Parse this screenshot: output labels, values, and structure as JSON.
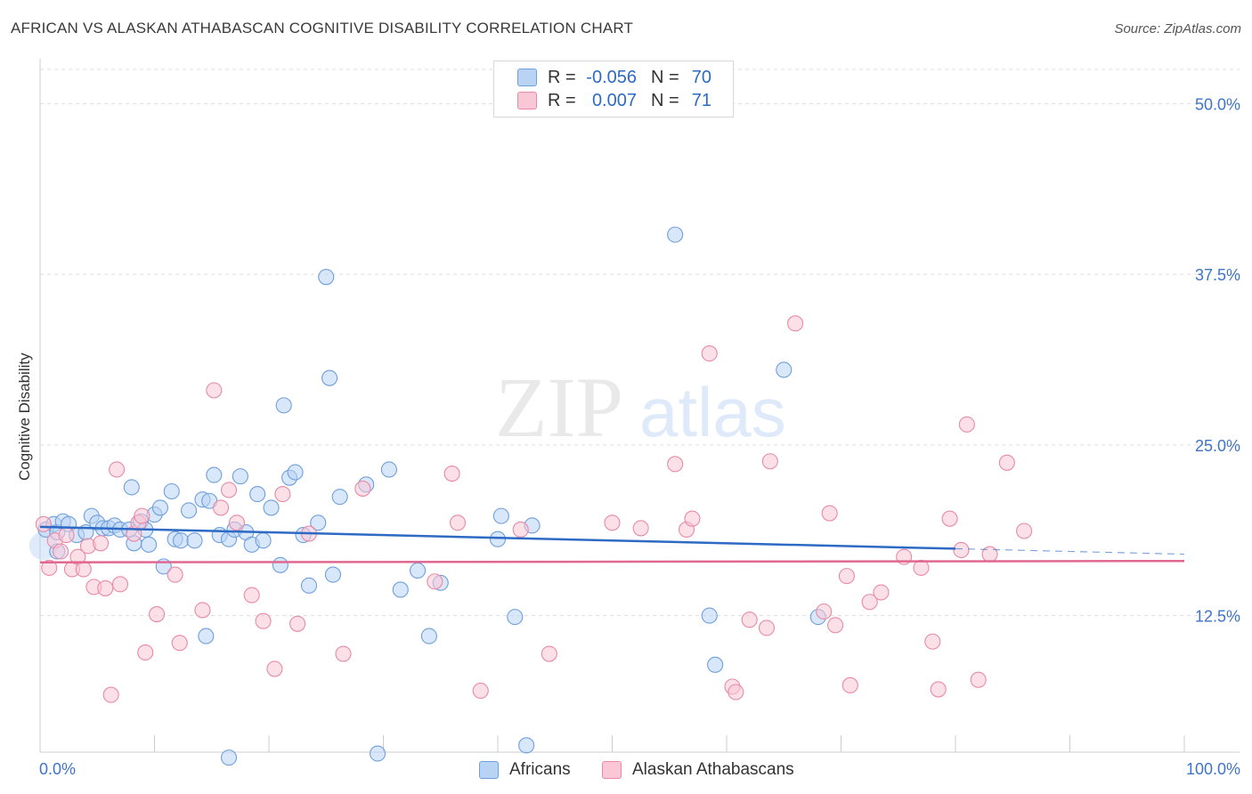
{
  "title": "AFRICAN VS ALASKAN ATHABASCAN COGNITIVE DISABILITY CORRELATION CHART",
  "source": "Source: ZipAtlas.com",
  "watermark": {
    "zip": "ZIP",
    "atlas": "atlas"
  },
  "legend_top": {
    "rows": [
      {
        "r_label": "R =",
        "r_value": "-0.056",
        "n_label": "N =",
        "n_value": "70"
      },
      {
        "r_label": "R =",
        "r_value": "0.007",
        "n_label": "N =",
        "n_value": "71"
      }
    ]
  },
  "colors": {
    "africans_fill": "#b9d3f5",
    "africans_stroke": "#6f9fdc",
    "africans_line": "#2d6ac4",
    "alaskan_fill": "#f9c7d5",
    "alaskan_stroke": "#e88aa6",
    "alaskan_line": "#e06890",
    "tick_label": "#3f74c9",
    "grid": "#dddddd"
  },
  "chart_data": {
    "type": "scatter",
    "ylabel": "Cognitive Disability",
    "xlim": [
      0,
      100
    ],
    "ylim": [
      2.5,
      52.5
    ],
    "x_tick_labels": [
      "0.0%",
      "100.0%"
    ],
    "y_ticks": [
      12.5,
      25.0,
      37.5,
      50.0
    ],
    "y_tick_labels": [
      "12.5%",
      "25.0%",
      "37.5%",
      "50.0%"
    ],
    "grid": true,
    "legend_position": "bottom",
    "series": [
      {
        "name": "Africans",
        "trend": {
          "x0": 0,
          "y0": 19.0,
          "x1": 80,
          "y1": 17.4,
          "dash_x1": 100,
          "dash_y1": 17.0
        },
        "points": [
          [
            0.5,
            18.8
          ],
          [
            1.2,
            19.2
          ],
          [
            1.5,
            18.6
          ],
          [
            2.0,
            19.4
          ],
          [
            2.5,
            19.2
          ],
          [
            3.2,
            18.4
          ],
          [
            4.0,
            18.6
          ],
          [
            4.5,
            19.8
          ],
          [
            5.0,
            19.3
          ],
          [
            5.5,
            18.9
          ],
          [
            6.0,
            18.9
          ],
          [
            6.5,
            19.1
          ],
          [
            7.0,
            18.8
          ],
          [
            7.8,
            18.8
          ],
          [
            8.0,
            21.9
          ],
          [
            8.2,
            17.8
          ],
          [
            8.8,
            19.4
          ],
          [
            9.2,
            18.8
          ],
          [
            9.5,
            17.7
          ],
          [
            10.0,
            19.9
          ],
          [
            10.5,
            20.4
          ],
          [
            10.8,
            16.1
          ],
          [
            11.5,
            21.6
          ],
          [
            11.8,
            18.1
          ],
          [
            12.3,
            18.0
          ],
          [
            13.0,
            20.2
          ],
          [
            13.5,
            18.0
          ],
          [
            14.2,
            21.0
          ],
          [
            14.8,
            20.9
          ],
          [
            15.2,
            22.8
          ],
          [
            15.7,
            18.4
          ],
          [
            16.5,
            18.1
          ],
          [
            17.0,
            18.8
          ],
          [
            17.5,
            22.7
          ],
          [
            18.0,
            18.6
          ],
          [
            18.5,
            17.7
          ],
          [
            19.0,
            21.4
          ],
          [
            19.5,
            18.0
          ],
          [
            20.2,
            20.4
          ],
          [
            21.0,
            16.2
          ],
          [
            21.3,
            27.9
          ],
          [
            21.8,
            22.6
          ],
          [
            22.3,
            23.0
          ],
          [
            23.0,
            18.4
          ],
          [
            23.5,
            14.7
          ],
          [
            24.3,
            19.3
          ],
          [
            25.0,
            37.3
          ],
          [
            25.3,
            29.9
          ],
          [
            25.6,
            15.5
          ],
          [
            26.2,
            21.2
          ],
          [
            28.5,
            22.1
          ],
          [
            29.5,
            2.4
          ],
          [
            30.5,
            23.2
          ],
          [
            31.5,
            14.4
          ],
          [
            33.0,
            15.8
          ],
          [
            34.0,
            11.0
          ],
          [
            35.0,
            14.9
          ],
          [
            40.0,
            18.1
          ],
          [
            40.3,
            19.8
          ],
          [
            41.5,
            12.4
          ],
          [
            42.5,
            3.0
          ],
          [
            43.0,
            19.1
          ],
          [
            55.5,
            40.4
          ],
          [
            58.5,
            12.5
          ],
          [
            59.0,
            8.9
          ],
          [
            65.0,
            30.5
          ],
          [
            68.0,
            12.4
          ],
          [
            14.5,
            11.0
          ],
          [
            16.5,
            2.1
          ],
          [
            1.5,
            17.2
          ]
        ]
      },
      {
        "name": "Alaskan Athabascans",
        "trend": {
          "x0": 0,
          "y0": 16.4,
          "x1": 100,
          "y1": 16.5
        },
        "points": [
          [
            0.3,
            19.2
          ],
          [
            0.8,
            16.0
          ],
          [
            1.3,
            18.0
          ],
          [
            1.8,
            17.2
          ],
          [
            2.3,
            18.4
          ],
          [
            2.8,
            15.9
          ],
          [
            3.3,
            16.8
          ],
          [
            3.8,
            15.9
          ],
          [
            4.2,
            17.6
          ],
          [
            4.7,
            14.6
          ],
          [
            5.3,
            17.8
          ],
          [
            5.7,
            14.5
          ],
          [
            6.2,
            6.7
          ],
          [
            6.7,
            23.2
          ],
          [
            7.0,
            14.8
          ],
          [
            8.2,
            18.5
          ],
          [
            8.6,
            19.3
          ],
          [
            8.9,
            19.8
          ],
          [
            9.2,
            9.8
          ],
          [
            10.2,
            12.6
          ],
          [
            11.8,
            15.5
          ],
          [
            12.2,
            10.5
          ],
          [
            14.2,
            12.9
          ],
          [
            15.2,
            29.0
          ],
          [
            15.8,
            20.4
          ],
          [
            16.5,
            21.7
          ],
          [
            17.2,
            19.3
          ],
          [
            18.5,
            14.0
          ],
          [
            19.5,
            12.1
          ],
          [
            20.5,
            8.6
          ],
          [
            21.2,
            21.4
          ],
          [
            22.5,
            11.9
          ],
          [
            23.5,
            18.5
          ],
          [
            26.5,
            9.7
          ],
          [
            28.2,
            21.8
          ],
          [
            34.5,
            15.0
          ],
          [
            36.0,
            22.9
          ],
          [
            36.5,
            19.3
          ],
          [
            38.5,
            7.0
          ],
          [
            42.0,
            18.8
          ],
          [
            44.5,
            9.7
          ],
          [
            50.0,
            19.3
          ],
          [
            52.5,
            18.9
          ],
          [
            55.5,
            23.6
          ],
          [
            56.5,
            18.8
          ],
          [
            57.0,
            19.6
          ],
          [
            58.5,
            31.7
          ],
          [
            60.5,
            7.3
          ],
          [
            60.8,
            6.9
          ],
          [
            62.0,
            12.2
          ],
          [
            63.5,
            11.6
          ],
          [
            63.8,
            23.8
          ],
          [
            66.0,
            33.9
          ],
          [
            68.5,
            12.8
          ],
          [
            69.0,
            20.0
          ],
          [
            69.5,
            11.8
          ],
          [
            70.5,
            15.4
          ],
          [
            70.8,
            7.4
          ],
          [
            72.5,
            13.5
          ],
          [
            73.5,
            14.2
          ],
          [
            75.5,
            16.8
          ],
          [
            77.0,
            16.0
          ],
          [
            78.0,
            10.6
          ],
          [
            78.5,
            7.1
          ],
          [
            79.5,
            19.6
          ],
          [
            80.5,
            17.3
          ],
          [
            81.0,
            26.5
          ],
          [
            82.0,
            7.8
          ],
          [
            83.0,
            17.0
          ],
          [
            84.5,
            23.7
          ],
          [
            86.0,
            18.7
          ]
        ]
      }
    ]
  }
}
